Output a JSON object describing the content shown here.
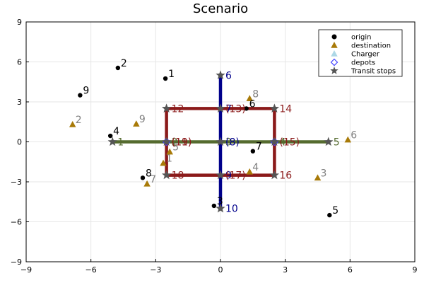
{
  "chart_data": {
    "type": "scatter",
    "title": "Scenario",
    "xlabel": "",
    "ylabel": "",
    "xlim": [
      -9,
      9
    ],
    "ylim": [
      -9,
      9
    ],
    "xticks": [
      -9,
      -6,
      -3,
      0,
      3,
      6,
      9
    ],
    "yticks": [
      -9,
      -6,
      -3,
      0,
      3,
      6,
      9
    ],
    "tick_labels": [
      "−9",
      "−6",
      "−3",
      "0",
      "3",
      "6",
      "9"
    ],
    "grid": true,
    "legend_position": "top-right",
    "legend": [
      {
        "name": "origin",
        "marker": "circle",
        "color": "#000000"
      },
      {
        "name": "destination",
        "marker": "triangle",
        "color": "#a87a08"
      },
      {
        "name": "Charger",
        "marker": "triangle",
        "color": "#add8e6"
      },
      {
        "name": "depots",
        "marker": "diamond",
        "color": "#4040ff"
      },
      {
        "name": "Transit stops",
        "marker": "star",
        "color": "#555555"
      }
    ],
    "origin": [
      {
        "label": "1",
        "x": -2.55,
        "y": 4.75
      },
      {
        "label": "2",
        "x": -4.75,
        "y": 5.55
      },
      {
        "label": "3",
        "x": -0.3,
        "y": -4.8
      },
      {
        "label": "4",
        "x": -5.1,
        "y": 0.45
      },
      {
        "label": "5",
        "x": 5.05,
        "y": -5.5
      },
      {
        "label": "6",
        "x": 1.2,
        "y": 2.5
      },
      {
        "label": "7",
        "x": 1.5,
        "y": -0.7
      },
      {
        "label": "8",
        "x": -3.6,
        "y": -2.7
      },
      {
        "label": "9",
        "x": -6.5,
        "y": 3.5
      }
    ],
    "destination": [
      {
        "label": "1",
        "x": -2.65,
        "y": -1.6
      },
      {
        "label": "2",
        "x": -6.85,
        "y": 1.3
      },
      {
        "label": "3",
        "x": 4.5,
        "y": -2.7
      },
      {
        "label": "4",
        "x": 1.35,
        "y": -2.25
      },
      {
        "label": "5",
        "x": -2.35,
        "y": -0.75
      },
      {
        "label": "6",
        "x": 5.9,
        "y": 0.15
      },
      {
        "label": "7",
        "x": -3.4,
        "y": -3.15
      },
      {
        "label": "8",
        "x": 1.35,
        "y": 3.25
      },
      {
        "label": "9",
        "x": -3.9,
        "y": 1.35
      }
    ],
    "depots": [
      {
        "x": -2.5,
        "y": 0
      },
      {
        "x": 2.5,
        "y": 0
      }
    ],
    "transit_stops": [
      {
        "label": "1",
        "x": -5,
        "y": 0,
        "color": "#556b2f"
      },
      {
        "label": "2",
        "x": -2.5,
        "y": 0,
        "color": "#556b2f"
      },
      {
        "label": "3",
        "x": 0,
        "y": 0,
        "color": "#556b2f"
      },
      {
        "label": "4",
        "x": 2.5,
        "y": 0,
        "color": "#556b2f"
      },
      {
        "label": "5",
        "x": 5,
        "y": 0,
        "color": "#556b2f"
      },
      {
        "label": "6",
        "x": 0,
        "y": 5,
        "color": "#00008b"
      },
      {
        "label": "7",
        "x": 0,
        "y": 2.5,
        "color": "#00008b"
      },
      {
        "label": "(8)",
        "x": 0,
        "y": 0,
        "color": "#00008b"
      },
      {
        "label": "9",
        "x": 0,
        "y": -2.5,
        "color": "#00008b"
      },
      {
        "label": "10",
        "x": 0,
        "y": -5,
        "color": "#00008b"
      },
      {
        "label": "(11)",
        "x": -2.5,
        "y": 0,
        "color": "#8b1a1a"
      },
      {
        "label": "12",
        "x": -2.5,
        "y": 2.5,
        "color": "#8b1a1a"
      },
      {
        "label": "(13)",
        "x": 0,
        "y": 2.5,
        "color": "#8b1a1a"
      },
      {
        "label": "14",
        "x": 2.5,
        "y": 2.5,
        "color": "#8b1a1a"
      },
      {
        "label": "(15)",
        "x": 2.5,
        "y": 0,
        "color": "#8b1a1a"
      },
      {
        "label": "16",
        "x": 2.5,
        "y": -2.5,
        "color": "#8b1a1a"
      },
      {
        "label": "(17)",
        "x": 0,
        "y": -2.5,
        "color": "#8b1a1a"
      },
      {
        "label": "18",
        "x": -2.5,
        "y": -2.5,
        "color": "#8b1a1a"
      },
      {
        "label": "(19)",
        "x": -2.5,
        "y": 0,
        "color": "#8b1a1a"
      }
    ],
    "lines": [
      {
        "color": "#556b2f",
        "points": [
          [
            -5,
            0
          ],
          [
            -2.5,
            0
          ],
          [
            0,
            0
          ],
          [
            2.5,
            0
          ],
          [
            5,
            0
          ]
        ]
      },
      {
        "color": "#00008b",
        "points": [
          [
            0,
            5
          ],
          [
            0,
            2.5
          ],
          [
            0,
            0
          ],
          [
            0,
            -2.5
          ],
          [
            0,
            -5
          ]
        ]
      },
      {
        "color": "#8b1a1a",
        "points": [
          [
            -2.5,
            0
          ],
          [
            -2.5,
            2.5
          ],
          [
            0,
            2.5
          ],
          [
            2.5,
            2.5
          ],
          [
            2.5,
            0
          ],
          [
            2.5,
            -2.5
          ],
          [
            0,
            -2.5
          ],
          [
            -2.5,
            -2.5
          ],
          [
            -2.5,
            0
          ]
        ]
      }
    ]
  }
}
